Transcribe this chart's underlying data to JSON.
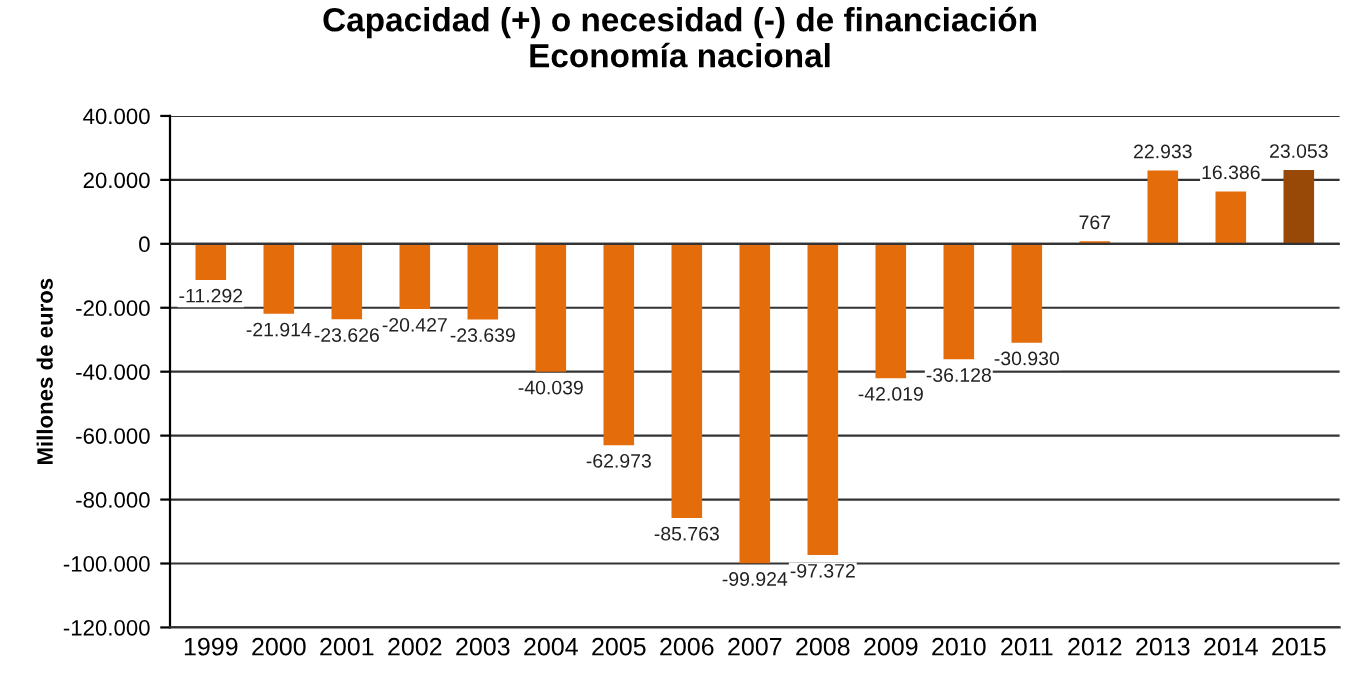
{
  "chart_data": {
    "type": "bar",
    "title": "Capacidad (+) o necesidad (-) de financiación\nEconomía nacional",
    "ylabel": "Millones de euros",
    "categories": [
      "1999",
      "2000",
      "2001",
      "2002",
      "2003",
      "2004",
      "2005",
      "2006",
      "2007",
      "2008",
      "2009",
      "2010",
      "2011",
      "2012",
      "2013",
      "2014",
      "2015"
    ],
    "values": [
      -11292,
      -21914,
      -23626,
      -20427,
      -23639,
      -40039,
      -62973,
      -85763,
      -99924,
      -97372,
      -42019,
      -36128,
      -30930,
      767,
      22933,
      16386,
      23053
    ],
    "value_labels": [
      "-11.292",
      "-21.914",
      "-23.626",
      "-20.427",
      "-23.639",
      "-40.039",
      "-62.973",
      "-85.763",
      "-99.924",
      "-97.372",
      "-42.019",
      "-36.128",
      "-30.930",
      "767",
      "22.933",
      "16.386",
      "23.053"
    ],
    "colors": [
      "#e46c0a",
      "#e46c0a",
      "#e46c0a",
      "#e46c0a",
      "#e46c0a",
      "#e46c0a",
      "#e46c0a",
      "#e46c0a",
      "#e46c0a",
      "#e46c0a",
      "#e46c0a",
      "#e46c0a",
      "#e46c0a",
      "#e46c0a",
      "#e46c0a",
      "#e46c0a",
      "#984807"
    ],
    "ylim": [
      -120000,
      40000
    ],
    "yticks": [
      {
        "value": -120000,
        "label": "-120.000"
      },
      {
        "value": -100000,
        "label": "-100.000"
      },
      {
        "value": -80000,
        "label": "-80.000"
      },
      {
        "value": -60000,
        "label": "-60.000"
      },
      {
        "value": -40000,
        "label": "-40.000"
      },
      {
        "value": -20000,
        "label": "-20.000"
      },
      0,
      {
        "value": 20000,
        "label": "20.000"
      },
      {
        "value": 40000,
        "label": "40.000"
      }
    ],
    "grid": "y"
  }
}
